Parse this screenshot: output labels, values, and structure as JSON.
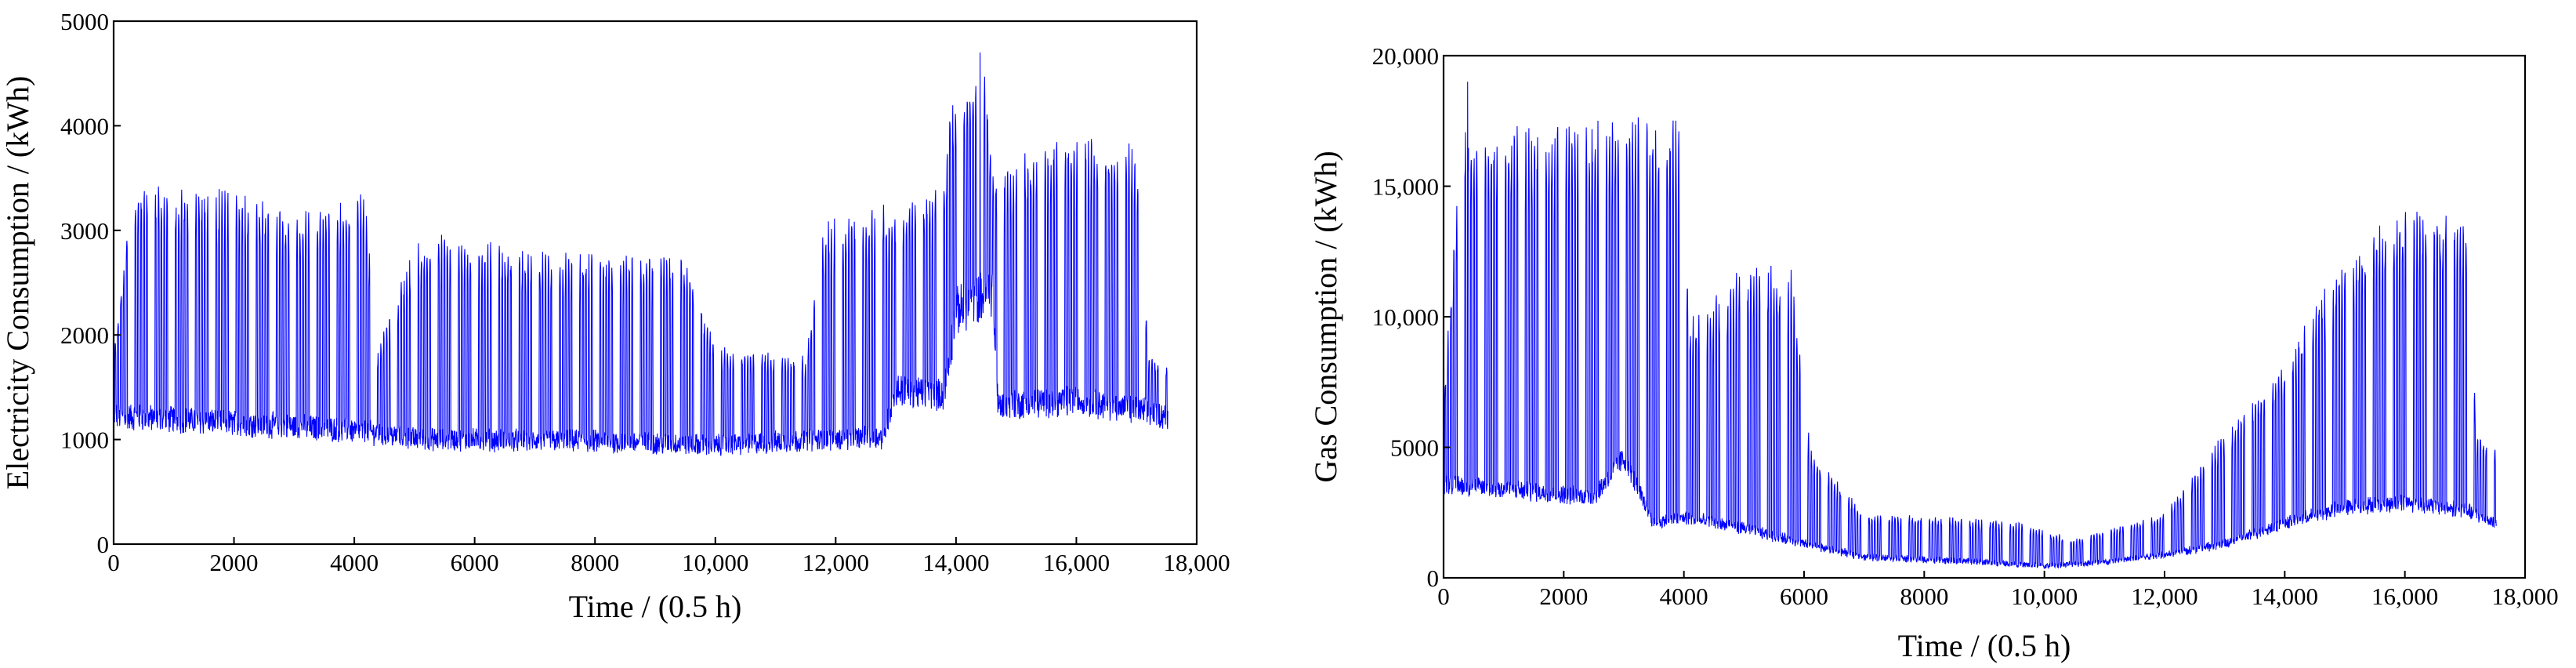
{
  "chart_data": [
    {
      "type": "line",
      "xlabel": "Time / (0.5 h)",
      "ylabel": "Electricity Consumption / (kWh)",
      "xlim": [
        0,
        18000
      ],
      "ylim": [
        0,
        5000
      ],
      "xticks": [
        0,
        2000,
        4000,
        6000,
        8000,
        10000,
        12000,
        14000,
        16000,
        18000
      ],
      "xtick_labels": [
        "0",
        "2000",
        "4000",
        "6000",
        "8000",
        "10,000",
        "12,000",
        "14,000",
        "16,000",
        "18,000"
      ],
      "yticks": [
        0,
        1000,
        2000,
        3000,
        4000,
        5000
      ],
      "ytick_labels": [
        "0",
        "1000",
        "2000",
        "3000",
        "4000",
        "5000"
      ],
      "grid": false,
      "series": [
        {
          "color": "#0000ff",
          "x_range": [
            0,
            17520
          ],
          "baseline": [
            [
              0,
              1200
            ],
            [
              3000,
              1100
            ],
            [
              4200,
              1050
            ],
            [
              5000,
              980
            ],
            [
              8000,
              960
            ],
            [
              10000,
              920
            ],
            [
              12000,
              980
            ],
            [
              12800,
              1000
            ],
            [
              13000,
              1450
            ],
            [
              13800,
              1400
            ],
            [
              14000,
              2200
            ],
            [
              14600,
              2400
            ],
            [
              14700,
              1300
            ],
            [
              16000,
              1350
            ],
            [
              17520,
              1200
            ]
          ],
          "weekday_peak": [
            [
              0,
              1800
            ],
            [
              300,
              3500
            ],
            [
              2000,
              3400
            ],
            [
              3000,
              3200
            ],
            [
              3700,
              3300
            ],
            [
              4200,
              3400
            ],
            [
              4350,
              1800
            ],
            [
              5000,
              2900
            ],
            [
              5500,
              3000
            ],
            [
              7000,
              2800
            ],
            [
              9500,
              2800
            ],
            [
              10000,
              1900
            ],
            [
              11500,
              1800
            ],
            [
              11800,
              3100
            ],
            [
              12800,
              3300
            ],
            [
              13000,
              3200
            ],
            [
              13800,
              3500
            ],
            [
              13900,
              4200
            ],
            [
              14500,
              4500
            ],
            [
              14600,
              3600
            ],
            [
              16000,
              4000
            ],
            [
              17000,
              3900
            ],
            [
              17200,
              1800
            ],
            [
              17520,
              1700
            ]
          ],
          "max": [
            14400,
            4700
          ]
        }
      ]
    },
    {
      "type": "line",
      "xlabel": "Time / (0.5 h)",
      "ylabel": "Gas Consumption / (kWh)",
      "xlim": [
        0,
        18000
      ],
      "ylim": [
        0,
        20000
      ],
      "xticks": [
        0,
        2000,
        4000,
        6000,
        8000,
        10000,
        12000,
        14000,
        16000,
        18000
      ],
      "xtick_labels": [
        "0",
        "2000",
        "4000",
        "6000",
        "8000",
        "10,000",
        "12,000",
        "14,000",
        "16,000",
        "18,000"
      ],
      "yticks": [
        0,
        5000,
        10000,
        15000,
        20000
      ],
      "ytick_labels": [
        "0",
        "5000",
        "10,000",
        "15,000",
        "20,000"
      ],
      "grid": false,
      "series": [
        {
          "color": "#0000ff",
          "x_range": [
            0,
            17520
          ],
          "baseline": [
            [
              0,
              3500
            ],
            [
              2500,
              3000
            ],
            [
              3000,
              4500
            ],
            [
              3500,
              2000
            ],
            [
              4000,
              2200
            ],
            [
              5000,
              1800
            ],
            [
              6000,
              1200
            ],
            [
              7000,
              700
            ],
            [
              9000,
              500
            ],
            [
              10000,
              350
            ],
            [
              11000,
              500
            ],
            [
              12000,
              800
            ],
            [
              13000,
              1200
            ],
            [
              14000,
              2000
            ],
            [
              15000,
              2600
            ],
            [
              16000,
              2800
            ],
            [
              17000,
              2500
            ],
            [
              17520,
              2000
            ]
          ],
          "weekday_peak": [
            [
              0,
              7000
            ],
            [
              300,
              17500
            ],
            [
              2500,
              17800
            ],
            [
              3900,
              17800
            ],
            [
              4100,
              10000
            ],
            [
              5000,
              12000
            ],
            [
              5800,
              12000
            ],
            [
              6100,
              5000
            ],
            [
              7000,
              2500
            ],
            [
              9500,
              2200
            ],
            [
              10500,
              1500
            ],
            [
              12000,
              2500
            ],
            [
              12800,
              5000
            ],
            [
              14000,
              8500
            ],
            [
              15000,
              12500
            ],
            [
              16000,
              14500
            ],
            [
              17000,
              14000
            ],
            [
              17200,
              5500
            ],
            [
              17520,
              5000
            ]
          ],
          "max": [
            400,
            19000
          ]
        }
      ]
    }
  ]
}
